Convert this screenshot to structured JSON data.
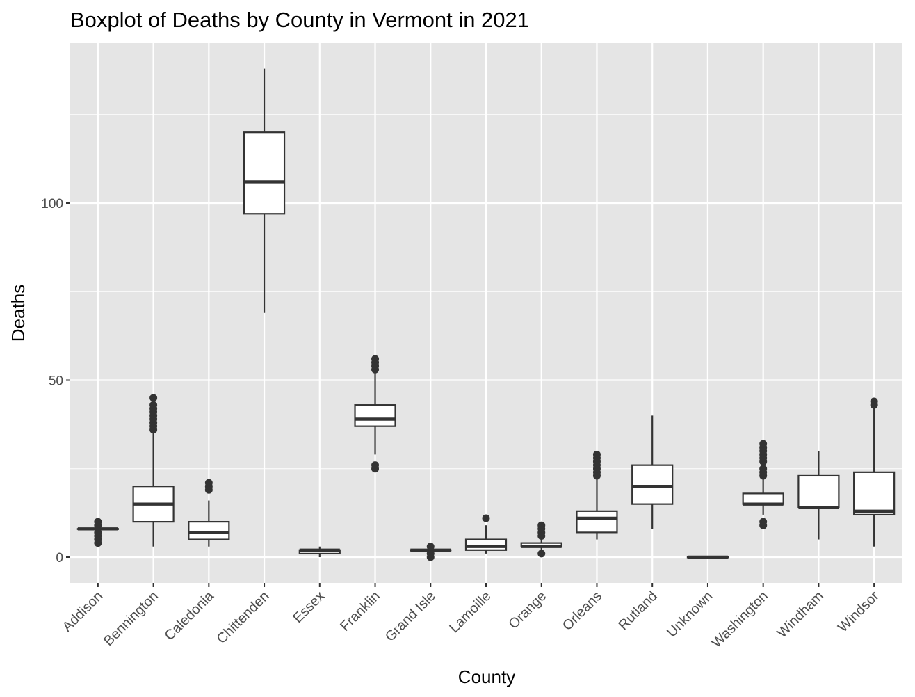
{
  "chart_data": {
    "type": "boxplot",
    "title": "Boxplot of Deaths by County in Vermont in 2021",
    "xlabel": "County",
    "ylabel": "Deaths",
    "ylim": [
      -7,
      139
    ],
    "yticks": [
      0,
      50,
      100
    ],
    "grid": true,
    "legend": "none",
    "colors": {
      "panel_background": "#e5e5e5",
      "grid": "#ffffff",
      "box_fill": "#ffffff",
      "box_line": "#333333",
      "outlier": "#333333",
      "text": "#000000",
      "tick_text": "#4d4d4d"
    },
    "categories": [
      "Addison",
      "Bennington",
      "Caledonia",
      "Chittenden",
      "Essex",
      "Franklin",
      "Grand Isle",
      "Lamoille",
      "Orange",
      "Orleans",
      "Rutland",
      "Unknown",
      "Washington",
      "Windham",
      "Windsor"
    ],
    "boxes": [
      {
        "county": "Addison",
        "whisker_low": 8,
        "q1": 8,
        "median": 8,
        "q3": 8,
        "whisker_high": 8,
        "outliers": [
          4,
          5,
          6,
          7,
          9,
          10
        ]
      },
      {
        "county": "Bennington",
        "whisker_low": 3,
        "q1": 10,
        "median": 15,
        "q3": 20,
        "whisker_high": 35,
        "outliers": [
          36,
          37,
          38,
          39,
          40,
          41,
          42,
          43,
          45
        ]
      },
      {
        "county": "Caledonia",
        "whisker_low": 3,
        "q1": 5,
        "median": 7,
        "q3": 10,
        "whisker_high": 16,
        "outliers": [
          19,
          20,
          21
        ]
      },
      {
        "county": "Chittenden",
        "whisker_low": 69,
        "q1": 97,
        "median": 106,
        "q3": 120,
        "whisker_high": 138,
        "outliers": []
      },
      {
        "county": "Essex",
        "whisker_low": 0,
        "q1": 1,
        "median": 2,
        "q3": 2,
        "whisker_high": 3,
        "outliers": []
      },
      {
        "county": "Franklin",
        "whisker_low": 29,
        "q1": 37,
        "median": 39,
        "q3": 43,
        "whisker_high": 52,
        "outliers": [
          25,
          26,
          53,
          54,
          55,
          56
        ]
      },
      {
        "county": "Grand Isle",
        "whisker_low": 2,
        "q1": 2,
        "median": 2,
        "q3": 2,
        "whisker_high": 2,
        "outliers": [
          0,
          1,
          3
        ]
      },
      {
        "county": "Lamoille",
        "whisker_low": 1,
        "q1": 2,
        "median": 3,
        "q3": 5,
        "whisker_high": 9,
        "outliers": [
          11
        ]
      },
      {
        "county": "Orange",
        "whisker_low": 2,
        "q1": 3,
        "median": 3,
        "q3": 4,
        "whisker_high": 5,
        "outliers": [
          1,
          6,
          7,
          8,
          9
        ]
      },
      {
        "county": "Orleans",
        "whisker_low": 5,
        "q1": 7,
        "median": 11,
        "q3": 13,
        "whisker_high": 22,
        "outliers": [
          23,
          24,
          25,
          26,
          27,
          28,
          29
        ]
      },
      {
        "county": "Rutland",
        "whisker_low": 8,
        "q1": 15,
        "median": 20,
        "q3": 26,
        "whisker_high": 40,
        "outliers": []
      },
      {
        "county": "Unknown",
        "whisker_low": 0,
        "q1": 0,
        "median": 0,
        "q3": 0,
        "whisker_high": 0,
        "outliers": []
      },
      {
        "county": "Washington",
        "whisker_low": 12,
        "q1": 15,
        "median": 15,
        "q3": 18,
        "whisker_high": 22,
        "outliers": [
          9,
          10,
          23,
          24,
          25,
          27,
          28,
          29,
          30,
          31,
          32
        ]
      },
      {
        "county": "Windham",
        "whisker_low": 5,
        "q1": 14,
        "median": 14,
        "q3": 23,
        "whisker_high": 30,
        "outliers": []
      },
      {
        "county": "Windsor",
        "whisker_low": 3,
        "q1": 12,
        "median": 13,
        "q3": 24,
        "whisker_high": 42,
        "outliers": [
          43,
          44
        ]
      }
    ]
  }
}
